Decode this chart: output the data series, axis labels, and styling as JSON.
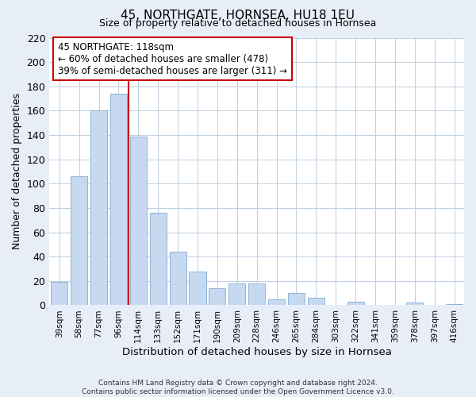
{
  "title": "45, NORTHGATE, HORNSEA, HU18 1EU",
  "subtitle": "Size of property relative to detached houses in Hornsea",
  "xlabel": "Distribution of detached houses by size in Hornsea",
  "ylabel": "Number of detached properties",
  "categories": [
    "39sqm",
    "58sqm",
    "77sqm",
    "96sqm",
    "114sqm",
    "133sqm",
    "152sqm",
    "171sqm",
    "190sqm",
    "209sqm",
    "228sqm",
    "246sqm",
    "265sqm",
    "284sqm",
    "303sqm",
    "322sqm",
    "341sqm",
    "359sqm",
    "378sqm",
    "397sqm",
    "416sqm"
  ],
  "values": [
    19,
    106,
    160,
    174,
    139,
    76,
    44,
    28,
    14,
    18,
    18,
    5,
    10,
    6,
    0,
    3,
    0,
    0,
    2,
    0,
    1
  ],
  "bar_color": "#c6d9f0",
  "bar_edge_color": "#8fb4d9",
  "vline_color": "#cc0000",
  "vline_index": 4,
  "ylim": [
    0,
    220
  ],
  "yticks": [
    0,
    20,
    40,
    60,
    80,
    100,
    120,
    140,
    160,
    180,
    200,
    220
  ],
  "annotation_text": "45 NORTHGATE: 118sqm\n← 60% of detached houses are smaller (478)\n39% of semi-detached houses are larger (311) →",
  "annotation_box_color": "white",
  "annotation_box_edge_color": "#cc0000",
  "footer_line1": "Contains HM Land Registry data © Crown copyright and database right 2024.",
  "footer_line2": "Contains public sector information licensed under the Open Government Licence v3.0.",
  "bg_color": "#e8eef8",
  "plot_bg_color": "white",
  "grid_color": "#c0cfe0"
}
